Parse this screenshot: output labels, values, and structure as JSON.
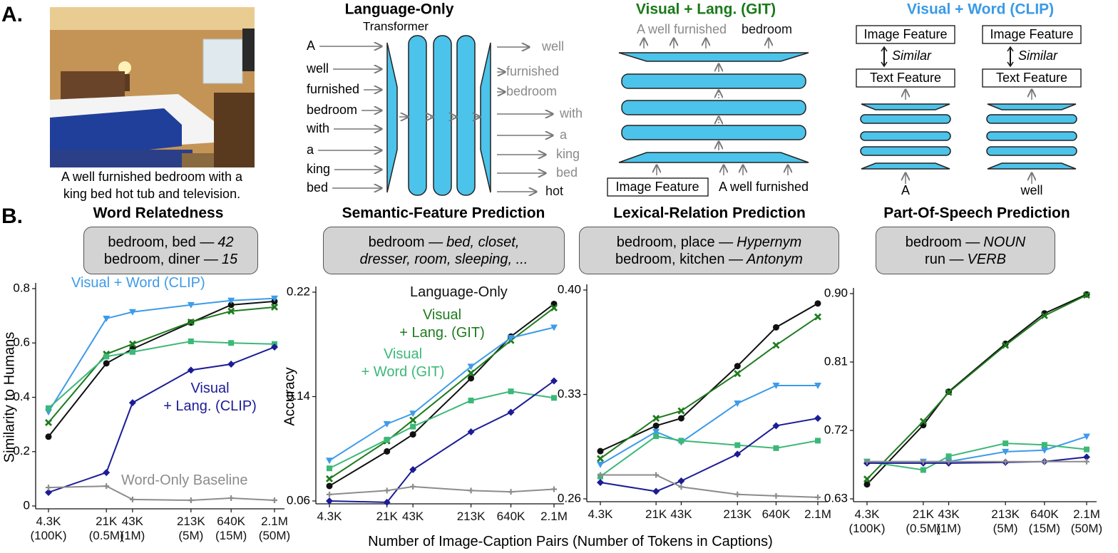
{
  "panel_labels": [
    "A.",
    "B."
  ],
  "image_caption": "A well furnished bedroom with a\nking bed hot tub and television.",
  "language_only": {
    "title": "Language-Only",
    "subtitle": "Transformer",
    "inputs": [
      "A",
      "well",
      "furnished",
      "bedroom",
      "with",
      "a",
      "king",
      "bed"
    ],
    "outputs": [
      "well",
      "furnished",
      "bedroom",
      "with",
      "a",
      "king",
      "bed",
      "hot"
    ]
  },
  "git": {
    "title": "Visual + Lang. (GIT)",
    "output_context": "A well furnished",
    "output_word": "bedroom",
    "input_box": "Image Feature",
    "input_text": "A well furnished"
  },
  "clip": {
    "title": "Visual + Word (CLIP)",
    "columns": [
      {
        "image": "Image Feature",
        "relation": "Similar",
        "text": "Text Feature",
        "input": "A"
      },
      {
        "image": "Image Feature",
        "relation": "Similar",
        "text": "Text Feature",
        "input": "well"
      }
    ]
  },
  "x_label": "Number of Image-Caption Pairs (Number of Tokens in Captions)",
  "chart_data": [
    {
      "type": "line",
      "title": "Word Relatedness",
      "example": [
        {
          "plain": "bedroom, bed —",
          "italic": "42"
        },
        {
          "plain": "bedroom, diner —",
          "italic": "15"
        }
      ],
      "ylabel": "Similarity to Humans",
      "xscale": "log",
      "x": [
        4300,
        21000,
        43000,
        213000,
        640000,
        2100000
      ],
      "xlim": [
        4300,
        2100000
      ],
      "xticks": [
        {
          "value": 4300,
          "label": "4.3K\n(100K)"
        },
        {
          "value": 21000,
          "label": "21K\n(0.5M)"
        },
        {
          "value": 43000,
          "label": "43K\n(1M)"
        },
        {
          "value": 213000,
          "label": "213K\n(5M)"
        },
        {
          "value": 640000,
          "label": "640K\n(15M)"
        },
        {
          "value": 2100000,
          "label": "2.1M\n(50M)"
        }
      ],
      "ylim": [
        0,
        0.8
      ],
      "yticks": [
        0,
        0.2,
        0.4,
        0.6,
        0.8
      ],
      "series": [
        {
          "color": "#111111",
          "marker": "circle",
          "values": [
            0.255,
            0.525,
            0.578,
            0.675,
            0.74,
            0.753
          ]
        },
        {
          "color": "#1e7b1e",
          "marker": "x",
          "values": [
            0.307,
            0.559,
            0.596,
            0.677,
            0.717,
            0.732
          ]
        },
        {
          "name": "Visual + Word (CLIP)",
          "color": "#3d9be9",
          "marker": "triangle-down",
          "values": [
            0.346,
            0.69,
            0.714,
            0.74,
            0.756,
            0.764
          ]
        },
        {
          "color": "#3cb878",
          "marker": "square",
          "values": [
            0.36,
            0.55,
            0.567,
            0.606,
            0.6,
            0.596
          ]
        },
        {
          "name": "Visual\n+ Lang. (CLIP)",
          "color": "#1c1c96",
          "marker": "diamond",
          "values": [
            0.05,
            0.123,
            0.38,
            0.5,
            0.522,
            0.585
          ]
        },
        {
          "name": "Word-Only Baseline",
          "color": "#8c8c8c",
          "marker": "plus",
          "values": [
            0.068,
            0.073,
            0.024,
            0.021,
            0.029,
            0.021
          ]
        }
      ]
    },
    {
      "type": "line",
      "title": "Semantic-Feature Prediction",
      "example": [
        {
          "plain": "bedroom —",
          "italic": "bed, closet,"
        },
        {
          "italic": "dresser, room, sleeping, ..."
        }
      ],
      "ylabel": "Accuracy",
      "xscale": "log",
      "x": [
        4300,
        21000,
        43000,
        213000,
        640000,
        2100000
      ],
      "xlim": [
        4300,
        2100000
      ],
      "xticks": [
        {
          "value": 4300,
          "label": "4.3K"
        },
        {
          "value": 21000,
          "label": "21K"
        },
        {
          "value": 43000,
          "label": "43K"
        },
        {
          "value": 213000,
          "label": "213K"
        },
        {
          "value": 640000,
          "label": "640K"
        },
        {
          "value": 2100000,
          "label": "2.1M"
        }
      ],
      "ylim": [
        0.06,
        0.22
      ],
      "yticks": [
        0.06,
        0.14,
        0.22
      ],
      "series": [
        {
          "name": "Language-Only",
          "color": "#111111",
          "marker": "circle",
          "values": [
            0.0715,
            0.098,
            0.111,
            0.154,
            0.186,
            0.211
          ]
        },
        {
          "name": "Visual\n+ Lang. (GIT)",
          "color": "#1e7b1e",
          "marker": "x",
          "values": [
            0.077,
            0.106,
            0.122,
            0.158,
            0.183,
            0.208
          ]
        },
        {
          "color": "#3d9be9",
          "marker": "triangle-down",
          "values": [
            0.091,
            0.119,
            0.127,
            0.163,
            0.185,
            0.193
          ]
        },
        {
          "name": "Visual\n+ Word (GIT)",
          "color": "#3cb878",
          "marker": "square",
          "values": [
            0.085,
            0.107,
            0.117,
            0.137,
            0.144,
            0.139
          ]
        },
        {
          "color": "#1c1c96",
          "marker": "diamond",
          "values": [
            0.06,
            0.059,
            0.084,
            0.113,
            0.128,
            0.152
          ]
        },
        {
          "color": "#8c8c8c",
          "marker": "plus",
          "values": [
            0.065,
            0.068,
            0.071,
            0.068,
            0.067,
            0.069
          ]
        }
      ]
    },
    {
      "type": "line",
      "title": "Lexical-Relation Prediction",
      "example": [
        {
          "plain": "bedroom, place —",
          "italic": "Hypernym"
        },
        {
          "plain": "bedroom, kitchen —",
          "italic": "Antonym"
        }
      ],
      "xscale": "log",
      "x": [
        4300,
        21000,
        43000,
        213000,
        640000,
        2100000
      ],
      "xlim": [
        4300,
        2100000
      ],
      "xticks": [
        {
          "value": 4300,
          "label": "4.3K"
        },
        {
          "value": 21000,
          "label": "21K"
        },
        {
          "value": 43000,
          "label": "43K"
        },
        {
          "value": 213000,
          "label": "213K"
        },
        {
          "value": 640000,
          "label": "640K"
        },
        {
          "value": 2100000,
          "label": "2.1M"
        }
      ],
      "ylim": [
        0.26,
        0.4
      ],
      "yticks": [
        0.26,
        0.33,
        {
          "value": 0.4,
          "label": "0.40"
        }
      ],
      "series": [
        {
          "color": "#111111",
          "marker": "circle",
          "values": [
            0.292,
            0.309,
            0.314,
            0.349,
            0.375,
            0.391
          ]
        },
        {
          "color": "#1e7b1e",
          "marker": "x",
          "values": [
            0.287,
            0.314,
            0.319,
            0.344,
            0.363,
            0.382
          ]
        },
        {
          "color": "#3d9be9",
          "marker": "triangle-down",
          "values": [
            0.283,
            0.305,
            0.298,
            0.324,
            0.336,
            0.336
          ]
        },
        {
          "color": "#3cb878",
          "marker": "square",
          "values": [
            0.275,
            0.302,
            0.299,
            0.296,
            0.294,
            0.299
          ]
        },
        {
          "color": "#1c1c96",
          "marker": "diamond",
          "values": [
            0.271,
            0.265,
            0.272,
            0.29,
            0.309,
            0.314
          ]
        },
        {
          "color": "#8c8c8c",
          "marker": "plus",
          "values": [
            0.276,
            0.276,
            0.268,
            0.263,
            0.262,
            0.261
          ]
        }
      ]
    },
    {
      "type": "line",
      "title": "Part-Of-Speech Prediction",
      "example": [
        {
          "plain": "bedroom —",
          "italic": "NOUN"
        },
        {
          "plain": "run —",
          "italic": "VERB"
        }
      ],
      "xscale": "log",
      "x": [
        4300,
        21000,
        43000,
        213000,
        640000,
        2100000
      ],
      "xlim": [
        4300,
        2100000
      ],
      "xticks": [
        {
          "value": 4300,
          "label": "4.3K\n(100K)"
        },
        {
          "value": 21000,
          "label": "21K\n(0.5M)"
        },
        {
          "value": 43000,
          "label": "43K\n(1M)"
        },
        {
          "value": 213000,
          "label": "213K\n(5M)"
        },
        {
          "value": 640000,
          "label": "640K\n(15M)"
        },
        {
          "value": 2100000,
          "label": "2.1M\n(50M)"
        }
      ],
      "ylim": [
        0.63,
        0.9
      ],
      "yticks": [
        0.63,
        0.72,
        0.81,
        {
          "value": 0.9,
          "label": "0.90"
        }
      ],
      "series": [
        {
          "color": "#111111",
          "marker": "circle",
          "values": [
            0.649,
            0.727,
            0.771,
            0.834,
            0.874,
            0.899
          ]
        },
        {
          "color": "#1e7b1e",
          "marker": "x",
          "values": [
            0.656,
            0.732,
            0.77,
            0.832,
            0.871,
            0.898
          ]
        },
        {
          "color": "#3d9be9",
          "marker": "triangle-down",
          "values": [
            0.679,
            0.679,
            0.679,
            0.692,
            0.694,
            0.712
          ]
        },
        {
          "color": "#3cb878",
          "marker": "square",
          "values": [
            0.679,
            0.668,
            0.686,
            0.703,
            0.701,
            0.695
          ]
        },
        {
          "color": "#1c1c96",
          "marker": "diamond",
          "values": [
            0.677,
            0.677,
            0.677,
            0.678,
            0.679,
            0.685
          ]
        },
        {
          "color": "#8c8c8c",
          "marker": "plus",
          "values": [
            0.679,
            0.679,
            0.679,
            0.679,
            0.679,
            0.679
          ]
        }
      ]
    }
  ]
}
